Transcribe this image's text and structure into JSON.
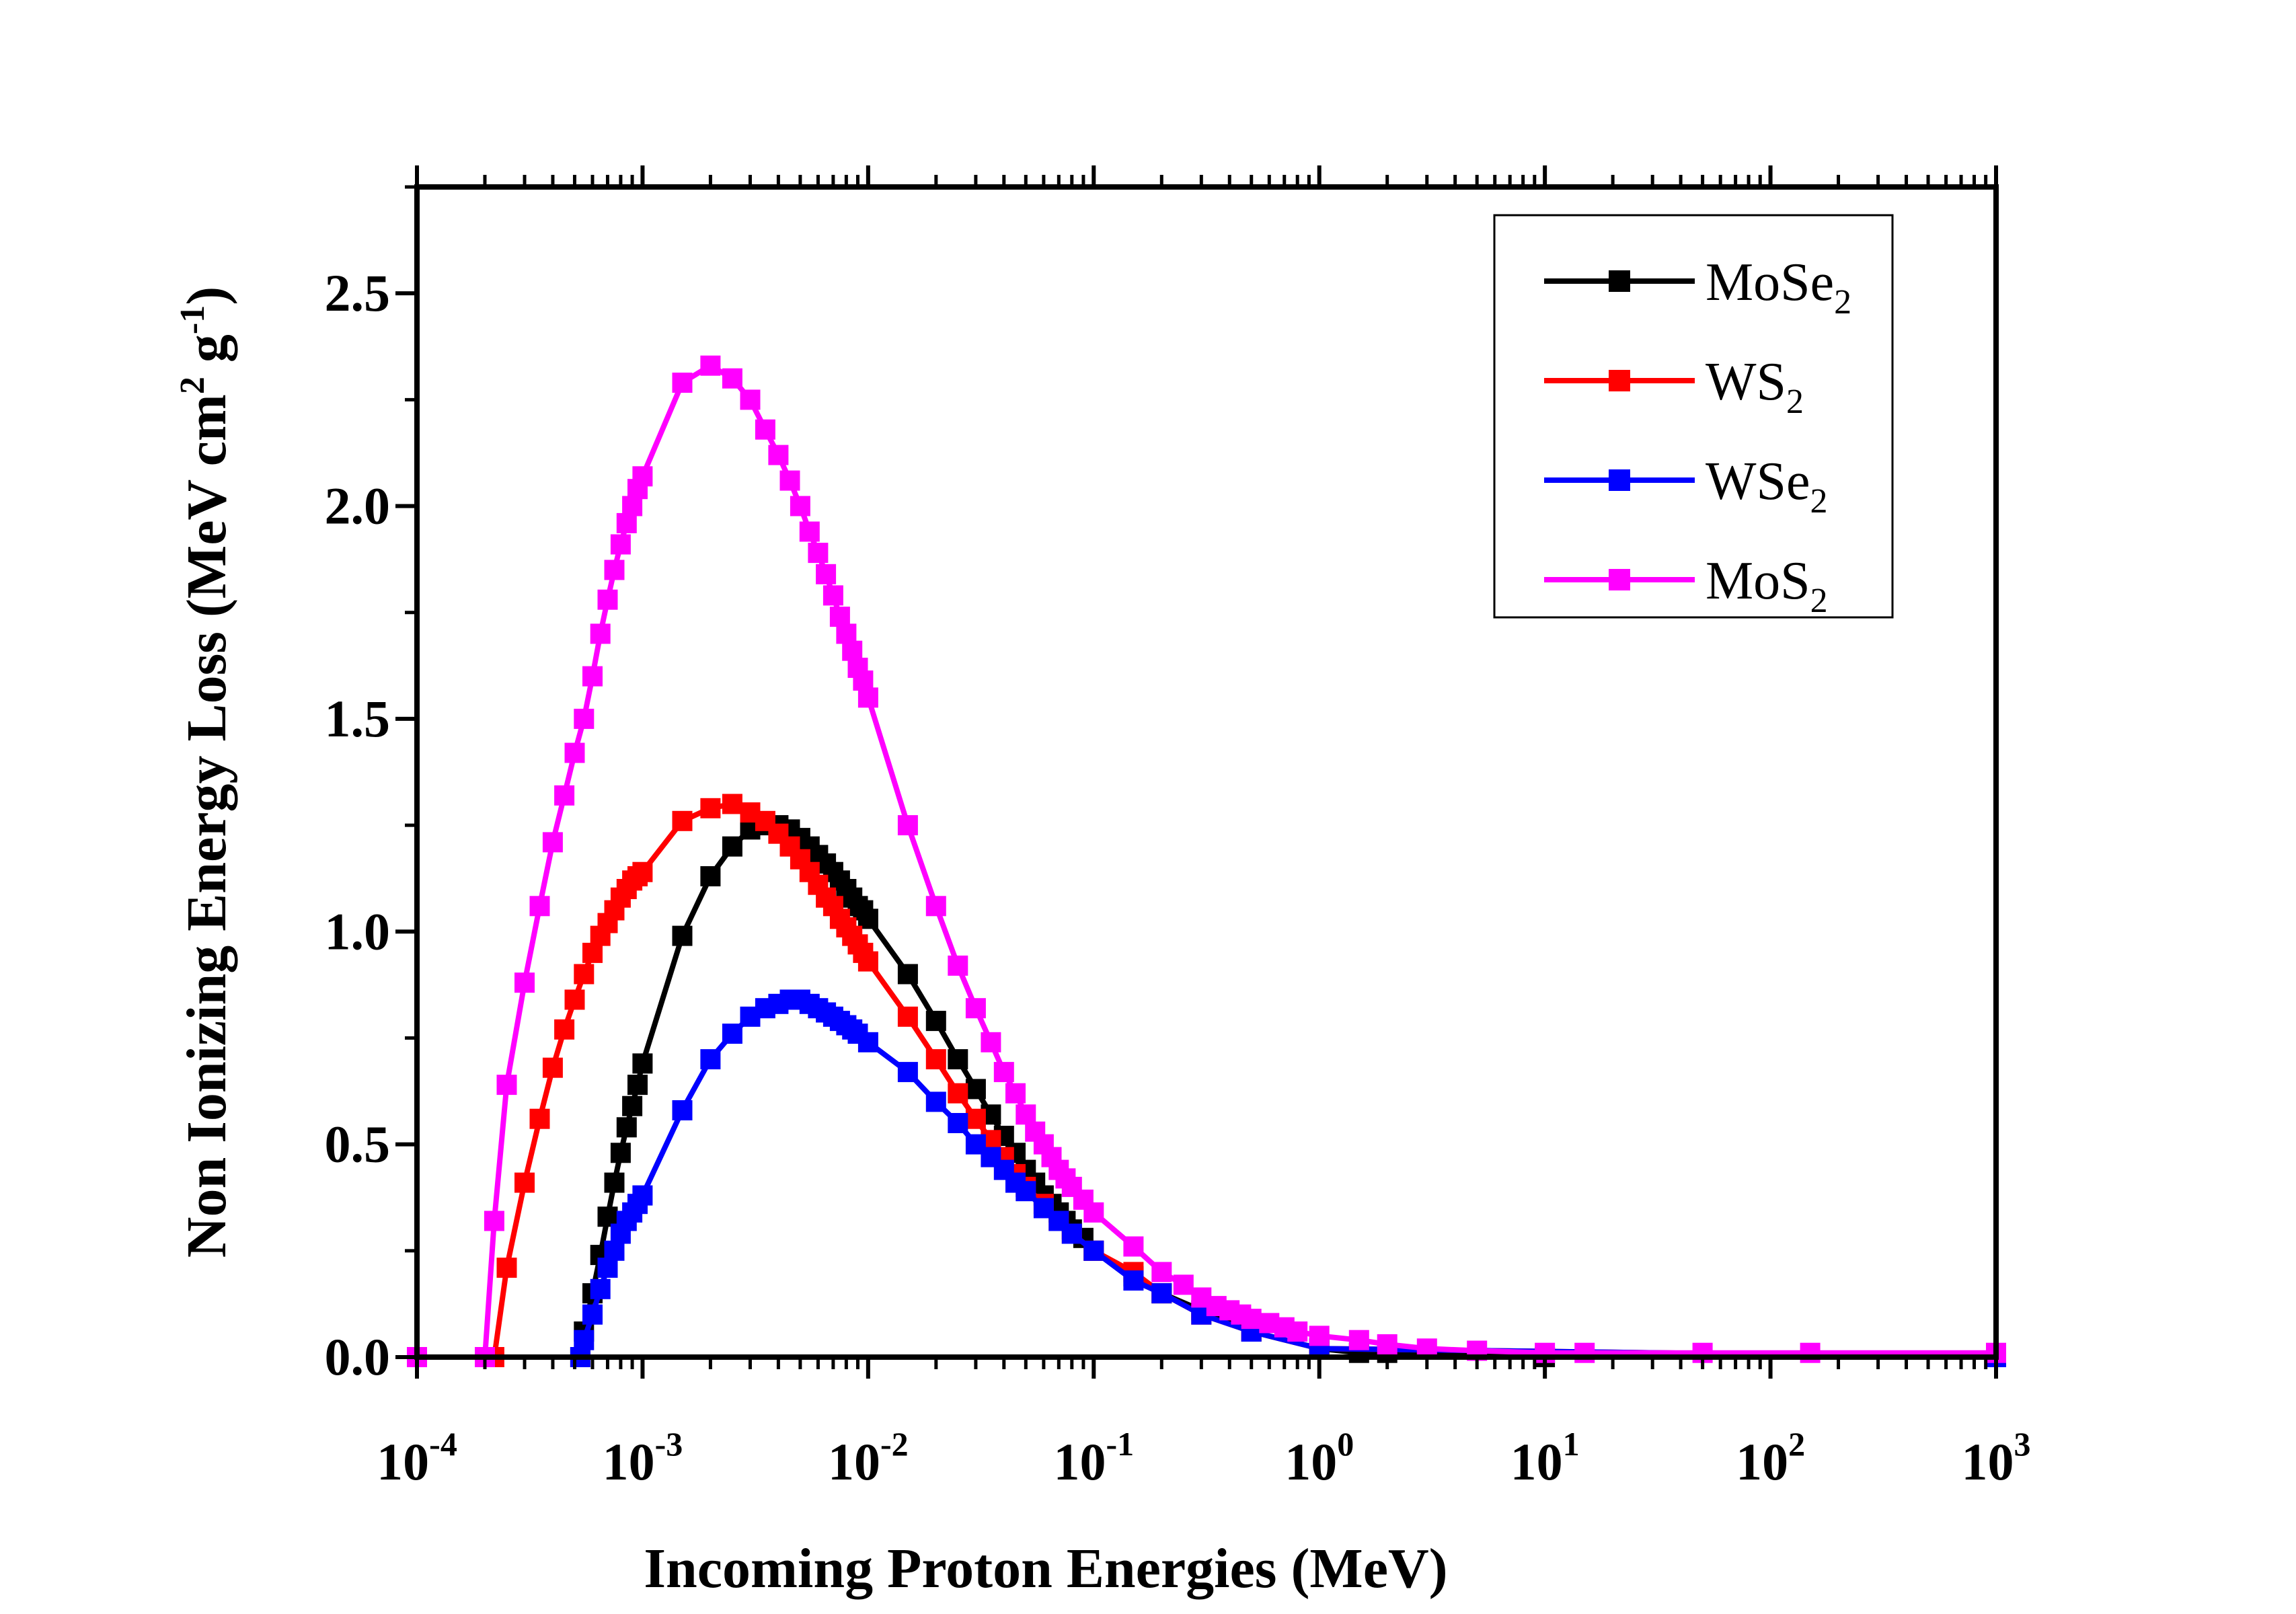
{
  "chart_data": {
    "type": "line",
    "xlabel": "Incoming Proton Energies (MeV)",
    "ylabel": "Non Ionizing Energy Loss (MeV cm",
    "ylabel_sup1": "2",
    "ylabel_mid": " g",
    "ylabel_sup2": "-1",
    "ylabel_end": ")",
    "x_scale": "log",
    "xlim": [
      0.0001,
      1000
    ],
    "ylim": [
      0,
      2.75
    ],
    "x_ticks": [
      {
        "base": "10",
        "exp": "-4"
      },
      {
        "base": "10",
        "exp": "-3"
      },
      {
        "base": "10",
        "exp": "-2"
      },
      {
        "base": "10",
        "exp": "-1"
      },
      {
        "base": "10",
        "exp": "0"
      },
      {
        "base": "10",
        "exp": "1"
      },
      {
        "base": "10",
        "exp": "2"
      },
      {
        "base": "10",
        "exp": "3"
      }
    ],
    "y_ticks": [
      "0.0",
      "0.5",
      "1.0",
      "1.5",
      "2.0",
      "2.5"
    ],
    "grid": false,
    "legend_position": "top-right",
    "series": [
      {
        "name": "MoSe",
        "name_sub": "2",
        "color": "#000000",
        "points": [
          [
            0.0001,
            0
          ],
          [
            0.00053,
            0
          ],
          [
            0.00055,
            0.06
          ],
          [
            0.0006,
            0.15
          ],
          [
            0.00065,
            0.24
          ],
          [
            0.0007,
            0.33
          ],
          [
            0.00075,
            0.41
          ],
          [
            0.0008,
            0.48
          ],
          [
            0.00085,
            0.54
          ],
          [
            0.0009,
            0.59
          ],
          [
            0.00095,
            0.64
          ],
          [
            0.001,
            0.69
          ],
          [
            0.0015,
            0.99
          ],
          [
            0.002,
            1.13
          ],
          [
            0.0025,
            1.2
          ],
          [
            0.003,
            1.24
          ],
          [
            0.0035,
            1.25
          ],
          [
            0.004,
            1.25
          ],
          [
            0.0045,
            1.24
          ],
          [
            0.005,
            1.22
          ],
          [
            0.0055,
            1.2
          ],
          [
            0.006,
            1.18
          ],
          [
            0.0065,
            1.16
          ],
          [
            0.007,
            1.14
          ],
          [
            0.0075,
            1.12
          ],
          [
            0.008,
            1.1
          ],
          [
            0.0085,
            1.08
          ],
          [
            0.009,
            1.06
          ],
          [
            0.0095,
            1.05
          ],
          [
            0.01,
            1.03
          ],
          [
            0.015,
            0.9
          ],
          [
            0.02,
            0.79
          ],
          [
            0.025,
            0.7
          ],
          [
            0.03,
            0.63
          ],
          [
            0.035,
            0.57
          ],
          [
            0.04,
            0.52
          ],
          [
            0.045,
            0.48
          ],
          [
            0.05,
            0.44
          ],
          [
            0.055,
            0.41
          ],
          [
            0.06,
            0.38
          ],
          [
            0.065,
            0.36
          ],
          [
            0.07,
            0.34
          ],
          [
            0.075,
            0.32
          ],
          [
            0.08,
            0.3
          ],
          [
            0.09,
            0.28
          ],
          [
            0.1,
            0.25
          ],
          [
            0.15,
            0.19
          ],
          [
            0.2,
            0.15
          ],
          [
            0.3,
            0.11
          ],
          [
            0.5,
            0.06
          ],
          [
            1,
            0.02
          ],
          [
            1.5,
            0.01
          ],
          [
            2,
            0.01
          ],
          [
            10,
            0
          ],
          [
            1000,
            0
          ]
        ]
      },
      {
        "name": "WS",
        "name_sub": "2",
        "color": "#ff0000",
        "points": [
          [
            0.0001,
            0
          ],
          [
            0.00022,
            0
          ],
          [
            0.00025,
            0.21
          ],
          [
            0.0003,
            0.41
          ],
          [
            0.00035,
            0.56
          ],
          [
            0.0004,
            0.68
          ],
          [
            0.00045,
            0.77
          ],
          [
            0.0005,
            0.84
          ],
          [
            0.00055,
            0.9
          ],
          [
            0.0006,
            0.95
          ],
          [
            0.00065,
            0.99
          ],
          [
            0.0007,
            1.02
          ],
          [
            0.00075,
            1.05
          ],
          [
            0.0008,
            1.08
          ],
          [
            0.00085,
            1.1
          ],
          [
            0.0009,
            1.12
          ],
          [
            0.00095,
            1.13
          ],
          [
            0.001,
            1.14
          ],
          [
            0.0015,
            1.26
          ],
          [
            0.002,
            1.29
          ],
          [
            0.0025,
            1.3
          ],
          [
            0.003,
            1.28
          ],
          [
            0.0035,
            1.26
          ],
          [
            0.004,
            1.23
          ],
          [
            0.0045,
            1.2
          ],
          [
            0.005,
            1.17
          ],
          [
            0.0055,
            1.14
          ],
          [
            0.006,
            1.11
          ],
          [
            0.0065,
            1.08
          ],
          [
            0.007,
            1.06
          ],
          [
            0.0075,
            1.03
          ],
          [
            0.008,
            1.01
          ],
          [
            0.0085,
            0.99
          ],
          [
            0.009,
            0.97
          ],
          [
            0.0095,
            0.95
          ],
          [
            0.01,
            0.93
          ],
          [
            0.015,
            0.8
          ],
          [
            0.02,
            0.7
          ],
          [
            0.025,
            0.62
          ],
          [
            0.03,
            0.56
          ],
          [
            0.035,
            0.51
          ],
          [
            0.04,
            0.47
          ],
          [
            0.045,
            0.43
          ],
          [
            0.05,
            0.4
          ],
          [
            0.06,
            0.36
          ],
          [
            0.07,
            0.32
          ],
          [
            0.08,
            0.29
          ],
          [
            0.1,
            0.25
          ],
          [
            0.15,
            0.2
          ],
          [
            0.2,
            0.15
          ],
          [
            0.3,
            0.1
          ],
          [
            0.5,
            0.06
          ],
          [
            1,
            0.02
          ],
          [
            1000,
            0
          ]
        ]
      },
      {
        "name": "WSe",
        "name_sub": "2",
        "color": "#0000ff",
        "points": [
          [
            0.0001,
            0
          ],
          [
            0.00053,
            0
          ],
          [
            0.00055,
            0.04
          ],
          [
            0.0006,
            0.1
          ],
          [
            0.00065,
            0.16
          ],
          [
            0.0007,
            0.21
          ],
          [
            0.00075,
            0.25
          ],
          [
            0.0008,
            0.29
          ],
          [
            0.00085,
            0.32
          ],
          [
            0.0009,
            0.34
          ],
          [
            0.00095,
            0.36
          ],
          [
            0.001,
            0.38
          ],
          [
            0.0015,
            0.58
          ],
          [
            0.002,
            0.7
          ],
          [
            0.0025,
            0.76
          ],
          [
            0.003,
            0.8
          ],
          [
            0.0035,
            0.82
          ],
          [
            0.004,
            0.83
          ],
          [
            0.0045,
            0.84
          ],
          [
            0.005,
            0.84
          ],
          [
            0.0055,
            0.83
          ],
          [
            0.006,
            0.82
          ],
          [
            0.0065,
            0.81
          ],
          [
            0.007,
            0.8
          ],
          [
            0.0075,
            0.79
          ],
          [
            0.008,
            0.78
          ],
          [
            0.0085,
            0.77
          ],
          [
            0.009,
            0.76
          ],
          [
            0.01,
            0.74
          ],
          [
            0.015,
            0.67
          ],
          [
            0.02,
            0.6
          ],
          [
            0.025,
            0.55
          ],
          [
            0.03,
            0.5
          ],
          [
            0.035,
            0.47
          ],
          [
            0.04,
            0.44
          ],
          [
            0.045,
            0.41
          ],
          [
            0.05,
            0.39
          ],
          [
            0.06,
            0.35
          ],
          [
            0.07,
            0.32
          ],
          [
            0.08,
            0.29
          ],
          [
            0.1,
            0.25
          ],
          [
            0.15,
            0.18
          ],
          [
            0.2,
            0.15
          ],
          [
            0.3,
            0.1
          ],
          [
            0.5,
            0.06
          ],
          [
            1,
            0.02
          ],
          [
            1000,
            0
          ]
        ]
      },
      {
        "name": "MoS",
        "name_sub": "2",
        "color": "#ff00ff",
        "points": [
          [
            0.0001,
            0
          ],
          [
            0.0002,
            0
          ],
          [
            0.00022,
            0.32
          ],
          [
            0.00025,
            0.64
          ],
          [
            0.0003,
            0.88
          ],
          [
            0.00035,
            1.06
          ],
          [
            0.0004,
            1.21
          ],
          [
            0.00045,
            1.32
          ],
          [
            0.0005,
            1.42
          ],
          [
            0.00055,
            1.5
          ],
          [
            0.0006,
            1.6
          ],
          [
            0.00065,
            1.7
          ],
          [
            0.0007,
            1.78
          ],
          [
            0.00075,
            1.85
          ],
          [
            0.0008,
            1.91
          ],
          [
            0.00085,
            1.96
          ],
          [
            0.0009,
            2.0
          ],
          [
            0.00095,
            2.04
          ],
          [
            0.001,
            2.07
          ],
          [
            0.0015,
            2.29
          ],
          [
            0.002,
            2.33
          ],
          [
            0.0025,
            2.3
          ],
          [
            0.003,
            2.25
          ],
          [
            0.0035,
            2.18
          ],
          [
            0.004,
            2.12
          ],
          [
            0.0045,
            2.06
          ],
          [
            0.005,
            2.0
          ],
          [
            0.0055,
            1.94
          ],
          [
            0.006,
            1.89
          ],
          [
            0.0065,
            1.84
          ],
          [
            0.007,
            1.79
          ],
          [
            0.0075,
            1.74
          ],
          [
            0.008,
            1.7
          ],
          [
            0.0085,
            1.66
          ],
          [
            0.009,
            1.62
          ],
          [
            0.0095,
            1.59
          ],
          [
            0.01,
            1.55
          ],
          [
            0.015,
            1.25
          ],
          [
            0.02,
            1.06
          ],
          [
            0.025,
            0.92
          ],
          [
            0.03,
            0.82
          ],
          [
            0.035,
            0.74
          ],
          [
            0.04,
            0.67
          ],
          [
            0.045,
            0.62
          ],
          [
            0.05,
            0.57
          ],
          [
            0.055,
            0.53
          ],
          [
            0.06,
            0.5
          ],
          [
            0.065,
            0.47
          ],
          [
            0.07,
            0.44
          ],
          [
            0.075,
            0.42
          ],
          [
            0.08,
            0.4
          ],
          [
            0.09,
            0.37
          ],
          [
            0.1,
            0.34
          ],
          [
            0.15,
            0.26
          ],
          [
            0.2,
            0.2
          ],
          [
            0.25,
            0.17
          ],
          [
            0.3,
            0.14
          ],
          [
            0.35,
            0.12
          ],
          [
            0.4,
            0.11
          ],
          [
            0.45,
            0.1
          ],
          [
            0.5,
            0.09
          ],
          [
            0.6,
            0.08
          ],
          [
            0.7,
            0.07
          ],
          [
            0.8,
            0.06
          ],
          [
            1,
            0.05
          ],
          [
            1.5,
            0.04
          ],
          [
            2,
            0.03
          ],
          [
            3,
            0.02
          ],
          [
            5,
            0.015
          ],
          [
            10,
            0.01
          ],
          [
            15,
            0.01
          ],
          [
            50,
            0.01
          ],
          [
            150,
            0.01
          ],
          [
            1000,
            0.01
          ]
        ]
      }
    ]
  }
}
